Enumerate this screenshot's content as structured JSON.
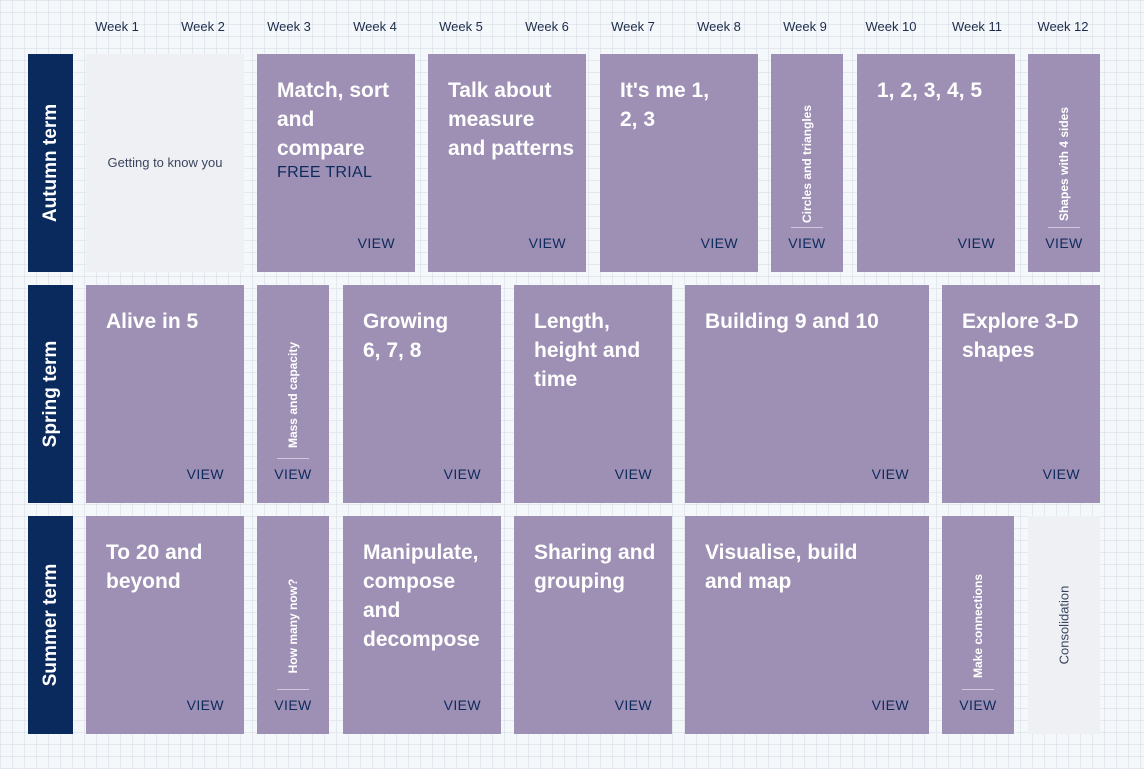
{
  "weeks": [
    "Week 1",
    "Week 2",
    "Week 3",
    "Week 4",
    "Week 5",
    "Week 6",
    "Week 7",
    "Week 8",
    "Week 9",
    "Week 10",
    "Week 11",
    "Week 12"
  ],
  "terms": [
    "Autumn term",
    "Spring term",
    "Summer term"
  ],
  "view_label": "VIEW",
  "colors": {
    "card": "#9e90b4",
    "term": "#0a2a5e",
    "grey": "#eef0f3",
    "text": "#0d2a5c"
  },
  "autumn": {
    "getting_to_know": "Getting to know you",
    "match": "Match, sort and compare",
    "free_trial": "FREE TRIAL",
    "talk": "Talk about measure and patterns",
    "its_me": "It's me 1, 2, 3",
    "circles": "Circles and triangles",
    "one_to_five": "1, 2, 3, 4, 5",
    "shapes4": "Shapes with 4 sides"
  },
  "spring": {
    "alive": "Alive in 5",
    "mass": "Mass and capacity",
    "growing": "Growing 6, 7, 8",
    "length": "Length, height and time",
    "building": "Building 9 and 10",
    "explore": "Explore 3-D shapes"
  },
  "summer": {
    "to20": "To 20 and beyond",
    "howmany": "How many now?",
    "manipulate": "Manipulate, compose and decompose",
    "sharing": "Sharing and grouping",
    "visualise": "Visualise, build and map",
    "connections": "Make connections",
    "consolidation": "Consolidation"
  }
}
